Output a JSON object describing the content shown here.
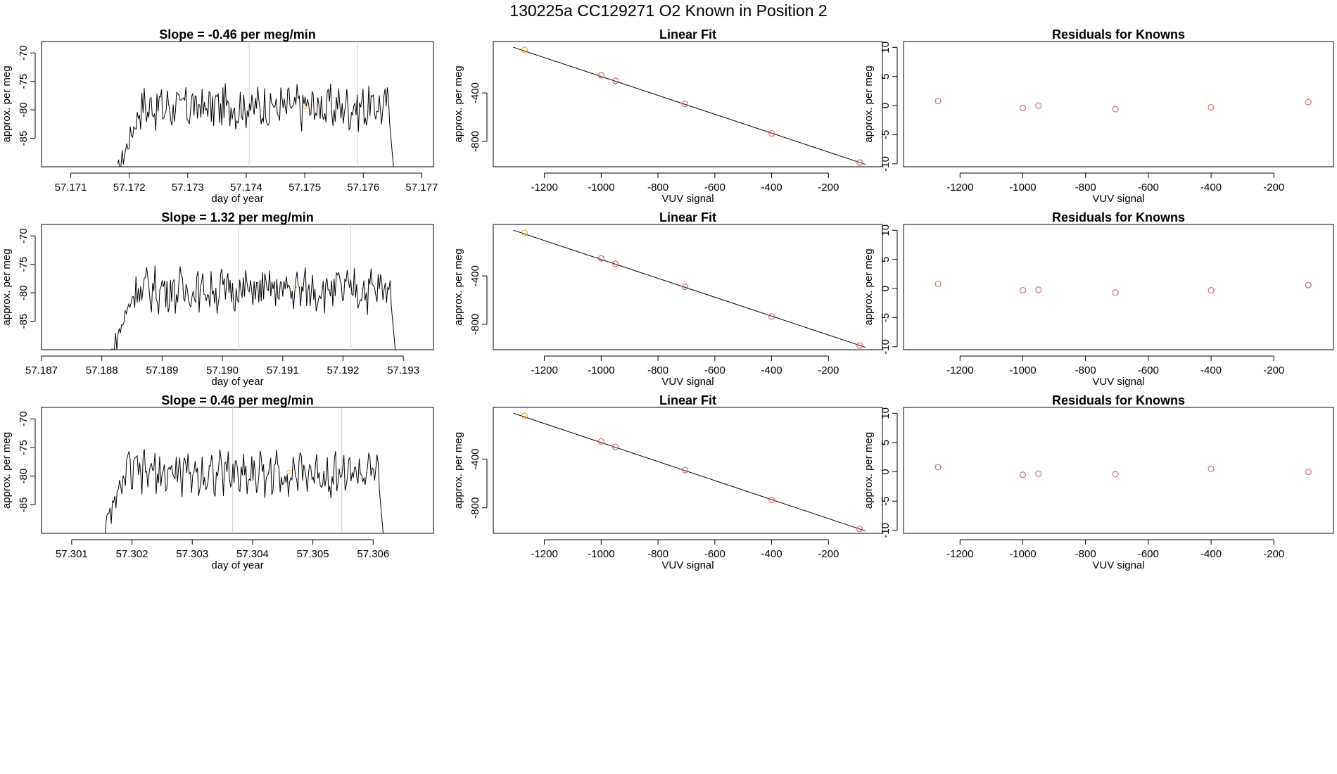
{
  "figure_title": "130225a     CC129271   O2 Known in Position  2",
  "colors": {
    "line": "#000000",
    "axis": "#000000",
    "vline": "#cccccc",
    "point": "#d96a6a",
    "highlight": "#f0a830"
  },
  "chart_data": [
    {
      "type": "line",
      "title": "Slope =  -0.46  per meg/min",
      "xlabel": "day of year",
      "ylabel": "approx. per meg",
      "xlim": [
        57.1705,
        57.1772
      ],
      "ylim": [
        -90,
        -68
      ],
      "xticks": [
        "57.171",
        "57.172",
        "57.173",
        "57.174",
        "57.175",
        "57.176",
        "57.177"
      ],
      "yticks": [
        "-70",
        "-75",
        "-80",
        "-85"
      ],
      "vlines": [
        57.17405,
        57.1759
      ],
      "highlight_point": [
        57.175,
        -79.5
      ],
      "trace_start": 57.1718,
      "trace_end": 57.17655
    },
    {
      "type": "scatter",
      "title": "Linear Fit",
      "xlabel": "VUV signal",
      "ylabel": "approx. per meg",
      "xlim": [
        -1380,
        -10
      ],
      "ylim": [
        -1010,
        25
      ],
      "xticks": [
        "-1200",
        "-1000",
        "-800",
        "-600",
        "-400",
        "-200"
      ],
      "yticks": [
        "-400",
        "-800"
      ],
      "points": {
        "x": [
          -1270,
          -1000,
          -950,
          -705,
          -400,
          -90
        ],
        "y": [
          -45,
          -255,
          -300,
          -490,
          -735,
          -975
        ]
      },
      "highlight_index": 0,
      "fit_line": [
        [
          -1310,
          -22
        ],
        [
          -70,
          -990
        ]
      ]
    },
    {
      "type": "scatter",
      "title": "Residuals for Knowns",
      "xlabel": "VUV signal",
      "ylabel": "approx. per meg",
      "xlim": [
        -1380,
        -10
      ],
      "ylim": [
        -10.5,
        11
      ],
      "xticks": [
        "-1200",
        "-1000",
        "-800",
        "-600",
        "-400",
        "-200"
      ],
      "yticks": [
        "10",
        "5",
        "0",
        "-5",
        "-10"
      ],
      "points": {
        "x": [
          -1270,
          -1000,
          -950,
          -705,
          -400,
          -90
        ],
        "y": [
          0.8,
          -0.4,
          0.0,
          -0.6,
          -0.3,
          0.6
        ]
      }
    },
    {
      "type": "line",
      "title": "Slope =  1.32  per meg/min",
      "xlabel": "day of year",
      "ylabel": "approx. per meg",
      "xlim": [
        57.187,
        57.1935
      ],
      "ylim": [
        -90,
        -68
      ],
      "xticks": [
        "57.187",
        "57.188",
        "57.189",
        "57.190",
        "57.191",
        "57.192",
        "57.193"
      ],
      "yticks": [
        "-70",
        "-75",
        "-80",
        "-85"
      ],
      "vlines": [
        57.19027,
        57.19213
      ],
      "highlight_point": [
        57.1912,
        -79.0
      ],
      "trace_start": 57.18815,
      "trace_end": 57.1929
    },
    {
      "type": "scatter",
      "title": "Linear Fit",
      "xlabel": "VUV signal",
      "ylabel": "approx. per meg",
      "xlim": [
        -1380,
        -10
      ],
      "ylim": [
        -1010,
        25
      ],
      "xticks": [
        "-1200",
        "-1000",
        "-800",
        "-600",
        "-400",
        "-200"
      ],
      "yticks": [
        "-400",
        "-800"
      ],
      "points": {
        "x": [
          -1270,
          -1000,
          -950,
          -705,
          -400,
          -90
        ],
        "y": [
          -45,
          -255,
          -300,
          -490,
          -735,
          -975
        ]
      },
      "highlight_index": 0,
      "fit_line": [
        [
          -1310,
          -22
        ],
        [
          -70,
          -990
        ]
      ]
    },
    {
      "type": "scatter",
      "title": "Residuals for Knowns",
      "xlabel": "VUV signal",
      "ylabel": "approx. per meg",
      "xlim": [
        -1380,
        -10
      ],
      "ylim": [
        -10.5,
        11
      ],
      "xticks": [
        "-1200",
        "-1000",
        "-800",
        "-600",
        "-400",
        "-200"
      ],
      "yticks": [
        "10",
        "5",
        "0",
        "-5",
        "-10"
      ],
      "points": {
        "x": [
          -1270,
          -1000,
          -950,
          -705,
          -400,
          -90
        ],
        "y": [
          0.8,
          -0.3,
          -0.2,
          -0.7,
          -0.3,
          0.6
        ]
      }
    },
    {
      "type": "line",
      "title": "Slope =  0.46  per meg/min",
      "xlabel": "day of year",
      "ylabel": "approx. per meg",
      "xlim": [
        57.3005,
        57.307
      ],
      "ylim": [
        -90,
        -68
      ],
      "xticks": [
        "57.301",
        "57.302",
        "57.303",
        "57.304",
        "57.305",
        "57.306"
      ],
      "yticks": [
        "-70",
        "-75",
        "-80",
        "-85"
      ],
      "vlines": [
        57.30367,
        57.30548
      ],
      "highlight_point": [
        57.3046,
        -79.3
      ],
      "trace_start": 57.3015,
      "trace_end": 57.3062
    },
    {
      "type": "scatter",
      "title": "Linear Fit",
      "xlabel": "VUV signal",
      "ylabel": "approx. per meg",
      "xlim": [
        -1380,
        -10
      ],
      "ylim": [
        -1010,
        25
      ],
      "xticks": [
        "-1200",
        "-1000",
        "-800",
        "-600",
        "-400",
        "-200"
      ],
      "yticks": [
        "-400",
        "-800"
      ],
      "points": {
        "x": [
          -1270,
          -1000,
          -950,
          -705,
          -400,
          -90
        ],
        "y": [
          -45,
          -255,
          -300,
          -490,
          -735,
          -975
        ]
      },
      "highlight_index": 0,
      "fit_line": [
        [
          -1310,
          -22
        ],
        [
          -70,
          -990
        ]
      ]
    },
    {
      "type": "scatter",
      "title": "Residuals for Knowns",
      "xlabel": "VUV signal",
      "ylabel": "approx. per meg",
      "xlim": [
        -1380,
        -10
      ],
      "ylim": [
        -10.5,
        11
      ],
      "xticks": [
        "-1200",
        "-1000",
        "-800",
        "-600",
        "-400",
        "-200"
      ],
      "yticks": [
        "10",
        "5",
        "0",
        "-5",
        "-10"
      ],
      "points": {
        "x": [
          -1270,
          -1000,
          -950,
          -705,
          -400,
          -90
        ],
        "y": [
          0.8,
          -0.5,
          -0.3,
          -0.4,
          0.5,
          0.0
        ]
      }
    }
  ]
}
